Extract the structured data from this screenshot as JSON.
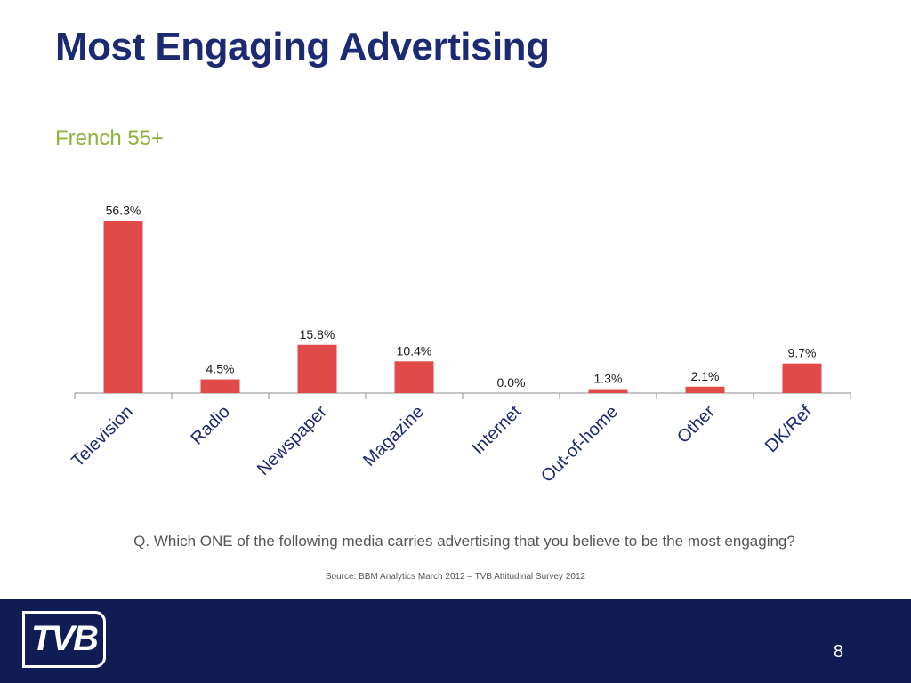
{
  "slide": {
    "title": "Most Engaging Advertising",
    "subtitle": "French 55+",
    "question": "Q. Which ONE of the following media carries advertising that you believe to be the most engaging?",
    "source": "Source: BBM Analytics March 2012 – TVB Attitudinal Survey 2012",
    "page_number": "8"
  },
  "footer": {
    "logo_text": "TVB",
    "background_color": "#101d55"
  },
  "colors": {
    "title": "#1c2a74",
    "subtitle": "#8db33a",
    "bar": "#e04b4a"
  },
  "chart_data": {
    "type": "bar",
    "categories": [
      "Television",
      "Radio",
      "Newspaper",
      "Magazine",
      "Internet",
      "Out-of-home",
      "Other",
      "DK/Ref"
    ],
    "values": [
      56.3,
      4.5,
      15.8,
      10.4,
      0.0,
      1.3,
      2.1,
      9.7
    ],
    "data_labels": [
      "56.3%",
      "4.5%",
      "15.8%",
      "10.4%",
      "0.0%",
      "1.3%",
      "2.1%",
      "9.7%"
    ],
    "ylim": [
      0,
      60
    ],
    "grid": false,
    "legend": "none",
    "bar_color": "#e04b4a"
  }
}
